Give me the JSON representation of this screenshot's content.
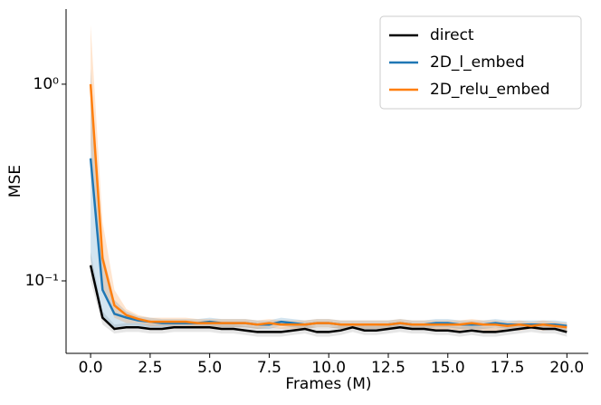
{
  "chart_data": {
    "type": "line",
    "xlabel": "Frames (M)",
    "ylabel": "MSE",
    "log_y": true,
    "legend": "upper right",
    "xlim": [
      -1.03,
      20.9
    ],
    "ylim": [
      0.0428,
      2.41
    ],
    "xticks": [
      {
        "value": 0,
        "label": "0.0"
      },
      {
        "value": 2.5,
        "label": "2.5"
      },
      {
        "value": 5,
        "label": "5.0"
      },
      {
        "value": 7.5,
        "label": "7.5"
      },
      {
        "value": 10,
        "label": "10.0"
      },
      {
        "value": 12.5,
        "label": "12.5"
      },
      {
        "value": 15,
        "label": "15.0"
      },
      {
        "value": 17.5,
        "label": "17.5"
      },
      {
        "value": 20,
        "label": "20.0"
      }
    ],
    "yticks": [
      {
        "value": 0.1,
        "label": "10⁻¹"
      },
      {
        "value": 1,
        "label": "10⁰"
      }
    ],
    "x": [
      0,
      0.5,
      1,
      1.5,
      2,
      2.5,
      3,
      3.5,
      4,
      4.5,
      5,
      5.5,
      6,
      6.5,
      7,
      7.5,
      8,
      8.5,
      9,
      9.5,
      10,
      10.5,
      11,
      11.5,
      12,
      12.5,
      13,
      13.5,
      14,
      14.5,
      15,
      15.5,
      16,
      16.5,
      17,
      17.5,
      18,
      18.5,
      19,
      19.5,
      20
    ],
    "series": [
      {
        "name": "direct",
        "color": "#000000",
        "band_color": "#808080",
        "values": [
          0.12,
          0.065,
          0.057,
          0.058,
          0.058,
          0.057,
          0.057,
          0.058,
          0.058,
          0.058,
          0.058,
          0.057,
          0.057,
          0.056,
          0.055,
          0.055,
          0.055,
          0.056,
          0.057,
          0.055,
          0.055,
          0.056,
          0.058,
          0.056,
          0.056,
          0.057,
          0.058,
          0.057,
          0.057,
          0.056,
          0.056,
          0.055,
          0.056,
          0.055,
          0.055,
          0.056,
          0.057,
          0.058,
          0.057,
          0.057,
          0.055
        ],
        "upper": [
          0.14,
          0.07,
          0.06,
          0.061,
          0.061,
          0.06,
          0.06,
          0.061,
          0.061,
          0.061,
          0.061,
          0.06,
          0.06,
          0.059,
          0.058,
          0.058,
          0.058,
          0.059,
          0.06,
          0.058,
          0.058,
          0.059,
          0.061,
          0.059,
          0.059,
          0.06,
          0.061,
          0.06,
          0.06,
          0.059,
          0.059,
          0.058,
          0.059,
          0.058,
          0.058,
          0.059,
          0.06,
          0.061,
          0.06,
          0.06,
          0.058
        ],
        "lower": [
          0.1,
          0.06,
          0.054,
          0.055,
          0.055,
          0.054,
          0.054,
          0.055,
          0.055,
          0.055,
          0.055,
          0.054,
          0.054,
          0.053,
          0.052,
          0.052,
          0.052,
          0.053,
          0.054,
          0.052,
          0.052,
          0.053,
          0.055,
          0.053,
          0.053,
          0.054,
          0.055,
          0.054,
          0.054,
          0.053,
          0.053,
          0.052,
          0.053,
          0.052,
          0.052,
          0.053,
          0.054,
          0.055,
          0.054,
          0.054,
          0.052
        ]
      },
      {
        "name": "2D_l_embed",
        "color": "#1f77b4",
        "band_color": "#1f77b4",
        "values": [
          0.42,
          0.09,
          0.068,
          0.065,
          0.063,
          0.062,
          0.061,
          0.061,
          0.061,
          0.061,
          0.062,
          0.061,
          0.061,
          0.061,
          0.06,
          0.06,
          0.062,
          0.061,
          0.06,
          0.061,
          0.061,
          0.06,
          0.06,
          0.06,
          0.06,
          0.06,
          0.061,
          0.06,
          0.06,
          0.061,
          0.061,
          0.06,
          0.06,
          0.06,
          0.061,
          0.06,
          0.06,
          0.06,
          0.06,
          0.06,
          0.059
        ],
        "upper": [
          1.2,
          0.14,
          0.08,
          0.07,
          0.066,
          0.065,
          0.064,
          0.064,
          0.064,
          0.064,
          0.065,
          0.064,
          0.064,
          0.064,
          0.063,
          0.063,
          0.065,
          0.064,
          0.063,
          0.064,
          0.064,
          0.063,
          0.063,
          0.063,
          0.063,
          0.063,
          0.064,
          0.063,
          0.063,
          0.064,
          0.064,
          0.063,
          0.063,
          0.063,
          0.064,
          0.063,
          0.063,
          0.063,
          0.063,
          0.063,
          0.062
        ],
        "lower": [
          0.13,
          0.065,
          0.058,
          0.059,
          0.059,
          0.058,
          0.058,
          0.058,
          0.058,
          0.058,
          0.059,
          0.058,
          0.058,
          0.058,
          0.057,
          0.057,
          0.059,
          0.058,
          0.057,
          0.058,
          0.058,
          0.057,
          0.057,
          0.057,
          0.057,
          0.057,
          0.058,
          0.057,
          0.057,
          0.058,
          0.058,
          0.057,
          0.057,
          0.057,
          0.058,
          0.057,
          0.057,
          0.057,
          0.057,
          0.057,
          0.056
        ]
      },
      {
        "name": "2D_relu_embed",
        "color": "#ff7f0e",
        "band_color": "#ff7f0e",
        "values": [
          1.0,
          0.13,
          0.075,
          0.067,
          0.064,
          0.062,
          0.062,
          0.062,
          0.062,
          0.061,
          0.061,
          0.061,
          0.061,
          0.061,
          0.06,
          0.061,
          0.06,
          0.06,
          0.06,
          0.061,
          0.061,
          0.06,
          0.06,
          0.06,
          0.06,
          0.06,
          0.061,
          0.06,
          0.06,
          0.06,
          0.06,
          0.06,
          0.061,
          0.06,
          0.06,
          0.059,
          0.06,
          0.059,
          0.06,
          0.059,
          0.058
        ],
        "upper": [
          2.0,
          0.2,
          0.09,
          0.072,
          0.067,
          0.065,
          0.065,
          0.065,
          0.065,
          0.064,
          0.064,
          0.064,
          0.064,
          0.064,
          0.063,
          0.064,
          0.063,
          0.063,
          0.063,
          0.064,
          0.064,
          0.063,
          0.063,
          0.063,
          0.063,
          0.063,
          0.064,
          0.063,
          0.063,
          0.063,
          0.063,
          0.063,
          0.064,
          0.063,
          0.063,
          0.062,
          0.063,
          0.062,
          0.063,
          0.062,
          0.061
        ],
        "lower": [
          0.5,
          0.09,
          0.065,
          0.061,
          0.061,
          0.059,
          0.059,
          0.059,
          0.059,
          0.058,
          0.058,
          0.058,
          0.058,
          0.058,
          0.057,
          0.058,
          0.057,
          0.057,
          0.057,
          0.058,
          0.058,
          0.057,
          0.057,
          0.057,
          0.057,
          0.057,
          0.058,
          0.057,
          0.057,
          0.056,
          0.057,
          0.056,
          0.057,
          0.056,
          0.055,
          0.057,
          0.056,
          0.057,
          0.056,
          0.057,
          0.055
        ]
      }
    ]
  }
}
